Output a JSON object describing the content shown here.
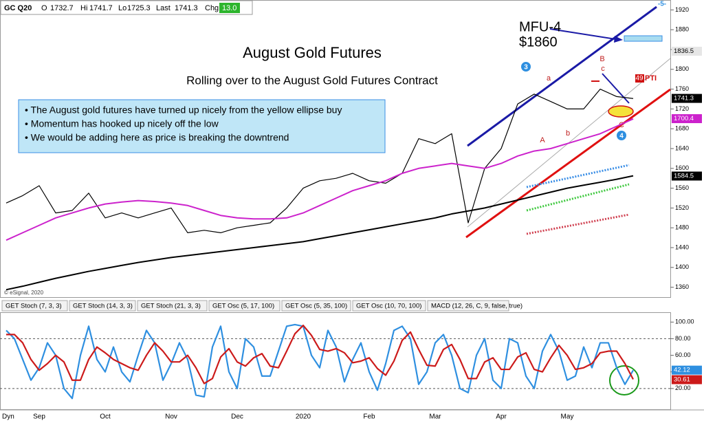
{
  "header": {
    "symbol": "GC Q20",
    "o_label": "O",
    "o": "1732.7",
    "hi_label": "Hi",
    "hi": "1741.7",
    "lo_label": "Lo",
    "lo": "1725.3",
    "last_label": "Last",
    "last": "1741.3",
    "chg_label": "Chg",
    "chg": "13.0"
  },
  "chart_data": [
    {
      "type": "line",
      "title": "August Gold Futures",
      "subtitle": "Rolling over to the August Gold Futures Contract",
      "notes": [
        "• The August gold futures have turned up nicely from the yellow ellipse buy",
        "• Momentum has hooked up nicely off the low",
        "• We would be adding here as price is breaking the downtrend"
      ],
      "annotations": {
        "mfu": "MFU-4",
        "target": "$1860",
        "w3": "3",
        "w4": "4",
        "w5": "-5-",
        "A": "A",
        "B": "B",
        "a": "a",
        "b": "b",
        "c": "c",
        "C": "C",
        "pti_num": "49",
        "pti": "PTI",
        "copyright": "© eSignal, 2020"
      },
      "categories": [
        null,
        null,
        null,
        null,
        null,
        null,
        null,
        null,
        null,
        null,
        null,
        null,
        null,
        null,
        null,
        null,
        null,
        null,
        null,
        null,
        null,
        null,
        null,
        null,
        null,
        null,
        null,
        null,
        null,
        null,
        null,
        null,
        null,
        null,
        null,
        null,
        null,
        null,
        null
      ],
      "series": [
        {
          "color": "#000000",
          "values": [
            1530,
            1545,
            1565,
            1510,
            1515,
            1550,
            1500,
            1510,
            1500,
            1510,
            1520,
            1470,
            1475,
            1470,
            1480,
            1485,
            1490,
            1520,
            1560,
            1575,
            1580,
            1590,
            1575,
            1570,
            1590,
            1660,
            1650,
            1670,
            1490,
            1600,
            1640,
            1730,
            1750,
            1735,
            1720,
            1720,
            1760,
            1745,
            1741
          ]
        },
        {
          "color": "#cc22cc",
          "values": [
            1455,
            1470,
            1485,
            1500,
            1510,
            1520,
            1528,
            1532,
            1535,
            1533,
            1530,
            1525,
            1515,
            1505,
            1500,
            1498,
            1498,
            1500,
            1510,
            1525,
            1540,
            1555,
            1565,
            1575,
            1590,
            1600,
            1605,
            1610,
            1605,
            1600,
            1610,
            1625,
            1635,
            1640,
            1650,
            1660,
            1670,
            1685,
            1700
          ]
        },
        {
          "color": "#000000",
          "values": [
            1355,
            1362,
            1370,
            1378,
            1385,
            1392,
            1398,
            1404,
            1410,
            1415,
            1420,
            1424,
            1428,
            1432,
            1436,
            1440,
            1444,
            1448,
            1452,
            1458,
            1464,
            1470,
            1476,
            1482,
            1488,
            1494,
            1500,
            1508,
            1514,
            1520,
            1528,
            1536,
            1544,
            1552,
            1560,
            1566,
            1572,
            1578,
            1585
          ]
        }
      ],
      "ylim": [
        1340,
        1940
      ],
      "yticks": [
        1360,
        1400,
        1440,
        1480,
        1520,
        1560,
        1600,
        1640,
        1680,
        1720,
        1760,
        1800,
        1840,
        1880,
        1920
      ],
      "tags": [
        {
          "value": 1836.5,
          "color": "#e6e6e6"
        },
        {
          "value": 1741.3,
          "color": "#000000"
        },
        {
          "value": 1700.4,
          "color": "#cc22cc"
        },
        {
          "value": 1584.5,
          "color": "#000000"
        }
      ]
    },
    {
      "type": "line",
      "tabs": [
        "GET Stoch (7, 3, 3)",
        "GET Stoch (14, 3, 3)",
        "GET Stoch (21, 3, 3)",
        "GET Osc (5, 17, 100)",
        "GET Osc (5, 35, 100)",
        "GET Osc (10, 70, 100)",
        "MACD (12, 26, C, 9, false, true)"
      ],
      "corner": "Dyn",
      "categories": [
        null,
        null,
        null,
        null,
        "Sep",
        null,
        null,
        null,
        null,
        null,
        null,
        null,
        "Oct",
        null,
        null,
        null,
        null,
        null,
        null,
        null,
        "Nov",
        null,
        null,
        null,
        null,
        null,
        null,
        null,
        "Dec",
        null,
        null,
        null,
        null,
        null,
        null,
        null,
        "2020",
        null,
        null,
        null,
        null,
        null,
        null,
        null,
        "Feb",
        null,
        null,
        null,
        null,
        null,
        null,
        null,
        "Mar",
        null,
        null,
        null,
        null,
        null,
        null,
        null,
        "Apr",
        null,
        null,
        null,
        null,
        null,
        null,
        null,
        "May",
        null,
        null,
        null,
        null,
        null,
        null,
        null,
        null
      ],
      "series": [
        {
          "color": "#2e8fe0",
          "values": [
            90,
            80,
            55,
            30,
            45,
            75,
            60,
            20,
            8,
            60,
            95,
            55,
            40,
            70,
            40,
            28,
            60,
            90,
            75,
            30,
            50,
            75,
            55,
            12,
            10,
            70,
            95,
            40,
            20,
            80,
            70,
            35,
            35,
            65,
            95,
            97,
            95,
            60,
            45,
            90,
            70,
            28,
            55,
            75,
            40,
            18,
            50,
            90,
            95,
            80,
            25,
            40,
            75,
            85,
            60,
            20,
            15,
            60,
            80,
            30,
            20,
            80,
            75,
            35,
            20,
            65,
            85,
            65,
            30,
            35,
            70,
            45,
            75,
            75,
            45,
            25,
            42
          ]
        },
        {
          "color": "#cc1a1a",
          "values": [
            85,
            85,
            75,
            55,
            42,
            50,
            60,
            52,
            30,
            30,
            55,
            70,
            63,
            55,
            50,
            45,
            42,
            60,
            75,
            65,
            52,
            52,
            60,
            45,
            26,
            32,
            58,
            68,
            52,
            47,
            57,
            62,
            47,
            45,
            65,
            86,
            96,
            84,
            67,
            65,
            68,
            63,
            51,
            53,
            57,
            44,
            36,
            53,
            78,
            88,
            67,
            48,
            47,
            67,
            73,
            55,
            32,
            32,
            52,
            57,
            43,
            43,
            58,
            63,
            43,
            40,
            57,
            72,
            60,
            43,
            45,
            50,
            63,
            65,
            65,
            50,
            31
          ]
        }
      ],
      "ylim": [
        -5,
        111
      ],
      "yticks": [
        {
          "value": 100,
          "label": "100.00"
        },
        {
          "value": 80,
          "label": "80.00"
        },
        {
          "value": 60,
          "label": "60.00"
        },
        {
          "value": 40,
          "label": "40.00"
        },
        {
          "value": 20,
          "label": "20.00"
        }
      ],
      "levels": [
        80,
        20
      ],
      "tags": [
        {
          "value": 42.12,
          "color": "#2e8fe0"
        },
        {
          "value": 30.61,
          "color": "#cc1a1a"
        }
      ]
    }
  ]
}
